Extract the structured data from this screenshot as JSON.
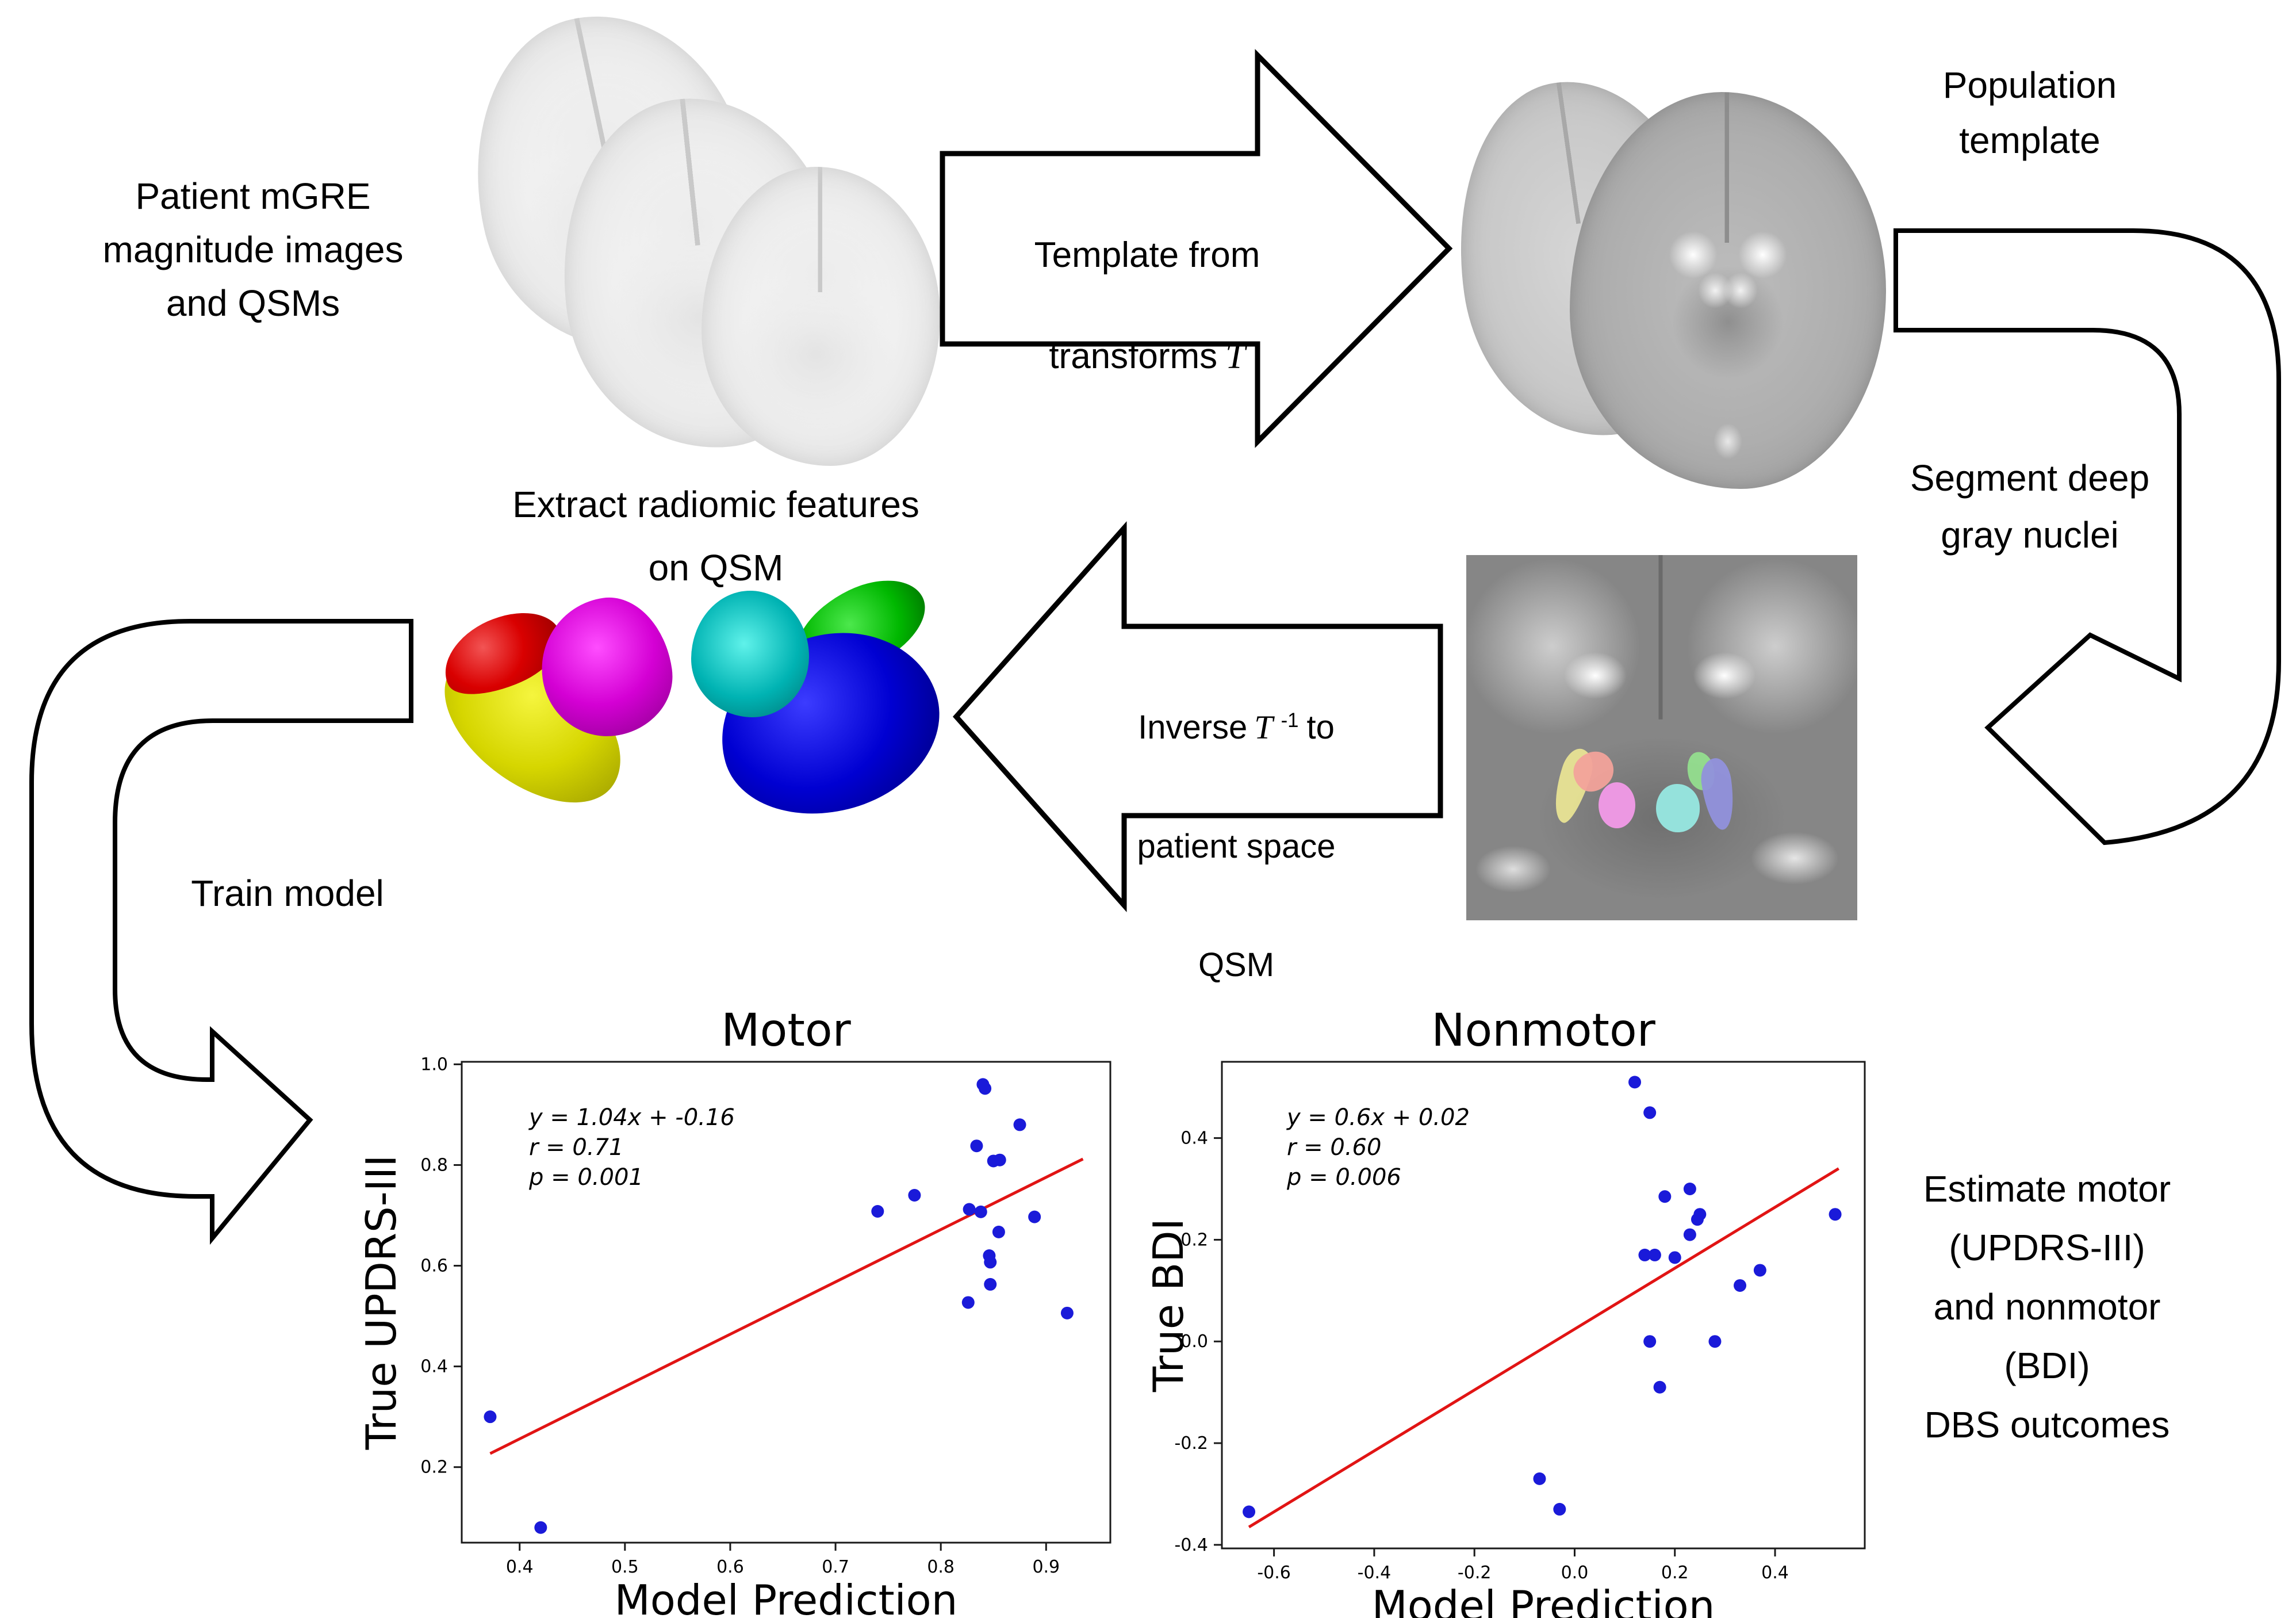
{
  "diagram": {
    "patient_label": "Patient mGRE\nmagnitude images\nand QSMs",
    "template_arrow": {
      "line1": "Template from",
      "line2_text": "transforms",
      "line2_math": "T"
    },
    "population_label": "Population\ntemplate",
    "segment_label": "Segment deep\ngray nuclei",
    "extract_label": "Extract radiomic features\non QSM",
    "inverse_arrow": {
      "word1": "Inverse",
      "math": "T",
      "sup": "-1",
      "word2": "to",
      "line2": "patient space",
      "line3": "QSM"
    },
    "train_label": "Train model",
    "estimate_label": "Estimate motor\n(UPDRS-III)\nand nonmotor\n(BDI)\nDBS outcomes"
  },
  "colors": {
    "arrow_outline": "#000000",
    "arrow_fill": "#ffffff",
    "scatter_point": "#1a1ad9",
    "fit_line": "#e11414",
    "blob_red": "#d90000",
    "blob_magenta": "#d400d4",
    "blob_yellow": "#d6d600",
    "blob_teal": "#00b3b3",
    "blob_green": "#00b800",
    "blob_blue": "#0000d2",
    "nucleus_yellow": "#e8e393",
    "nucleus_salmon": "#f2a29a",
    "nucleus_orchid": "#f29ae8",
    "nucleus_cyan": "#97e8e1",
    "nucleus_green": "#93de8e",
    "nucleus_purple": "#9191dc"
  },
  "chart_data": [
    {
      "type": "scatter",
      "title": "Motor",
      "xlabel": "Model Prediction",
      "ylabel": "True UPDRS-III",
      "xlim": [
        0.345,
        0.961
      ],
      "ylim": [
        0.05,
        1.005
      ],
      "xticks": {
        "values": [
          0.4,
          0.5,
          0.6,
          0.7,
          0.8,
          0.9
        ],
        "labels": [
          "0.4",
          "0.5",
          "0.6",
          "0.7",
          "0.8",
          "0.9"
        ]
      },
      "yticks": {
        "values": [
          0.2,
          0.4,
          0.6,
          0.8,
          1.0
        ],
        "labels": [
          "0.2",
          "0.4",
          "0.6",
          "0.8",
          "1.0"
        ]
      },
      "annotation": [
        "y = 1.04x + -0.16",
        "r = 0.71",
        "p = 0.001"
      ],
      "points": [
        [
          0.84,
          0.96
        ],
        [
          0.842,
          0.952
        ],
        [
          0.875,
          0.88
        ],
        [
          0.834,
          0.838
        ],
        [
          0.85,
          0.808
        ],
        [
          0.856,
          0.81
        ],
        [
          0.775,
          0.74
        ],
        [
          0.74,
          0.708
        ],
        [
          0.827,
          0.712
        ],
        [
          0.838,
          0.707
        ],
        [
          0.889,
          0.697
        ],
        [
          0.855,
          0.667
        ],
        [
          0.846,
          0.62
        ],
        [
          0.847,
          0.607
        ],
        [
          0.847,
          0.563
        ],
        [
          0.826,
          0.527
        ],
        [
          0.92,
          0.506
        ],
        [
          0.372,
          0.3
        ],
        [
          0.42,
          0.08
        ]
      ],
      "fit_line": [
        [
          0.372,
          0.227
        ],
        [
          0.935,
          0.812
        ]
      ],
      "grid": false,
      "legend": null
    },
    {
      "type": "scatter",
      "title": "Nonmotor",
      "xlabel": "Model Prediction",
      "ylabel": "True BDI",
      "xlim": [
        -0.704,
        0.579
      ],
      "ylim": [
        -0.407,
        0.55
      ],
      "xticks": {
        "values": [
          -0.6,
          -0.4,
          -0.2,
          0.0,
          0.2,
          0.4
        ],
        "labels": [
          "-0.6",
          "-0.4",
          "-0.2",
          "0.0",
          "0.2",
          "0.4"
        ]
      },
      "yticks": {
        "values": [
          -0.4,
          -0.2,
          0.0,
          0.2,
          0.4
        ],
        "labels": [
          "-0.4",
          "-0.2",
          "0.0",
          "0.2",
          "0.4"
        ]
      },
      "annotation": [
        "y = 0.6x + 0.02",
        "r = 0.60",
        "p = 0.006"
      ],
      "points": [
        [
          0.12,
          0.51
        ],
        [
          0.15,
          0.45
        ],
        [
          0.18,
          0.285
        ],
        [
          0.23,
          0.3
        ],
        [
          0.25,
          0.25
        ],
        [
          0.245,
          0.24
        ],
        [
          0.23,
          0.21
        ],
        [
          0.14,
          0.17
        ],
        [
          0.16,
          0.17
        ],
        [
          0.2,
          0.165
        ],
        [
          0.37,
          0.14
        ],
        [
          0.33,
          0.11
        ],
        [
          0.52,
          0.25
        ],
        [
          0.15,
          0.0
        ],
        [
          0.28,
          0.0
        ],
        [
          0.17,
          -0.09
        ],
        [
          -0.07,
          -0.27
        ],
        [
          -0.03,
          -0.33
        ],
        [
          -0.65,
          -0.335
        ]
      ],
      "fit_line": [
        [
          -0.65,
          -0.365
        ],
        [
          0.527,
          0.34
        ]
      ],
      "grid": false,
      "legend": null
    }
  ]
}
